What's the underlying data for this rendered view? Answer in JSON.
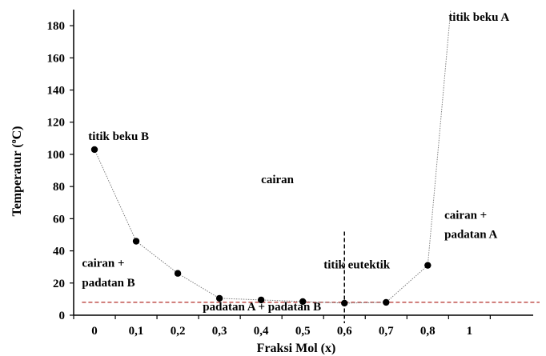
{
  "chart_data": {
    "type": "scatter",
    "xlabel": "Fraksi Mol (x)",
    "ylabel_main": "Temperatur (",
    "ylabel_sup": "o",
    "ylabel_tail": "C)",
    "xlim": [
      -0.05,
      1.08
    ],
    "ylim": [
      0,
      190
    ],
    "x_ticks": [
      0,
      0.1,
      0.2,
      0.3,
      0.4,
      0.5,
      0.6,
      0.7,
      0.8,
      1
    ],
    "x_tick_labels": [
      "0",
      "0,1",
      "0,2",
      "0,3",
      "0,4",
      "0,5",
      "0,6",
      "0,7",
      "0,8",
      "1"
    ],
    "y_ticks": [
      0,
      20,
      40,
      60,
      80,
      100,
      120,
      140,
      160,
      180
    ],
    "y_tick_labels": [
      "0",
      "20",
      "40",
      "60",
      "80",
      "100",
      "120",
      "140",
      "160",
      "180"
    ],
    "grid": false,
    "series": [
      {
        "x": [
          0,
          0.1,
          0.2,
          0.3,
          0.4,
          0.5,
          0.6,
          0.7,
          0.8
        ],
        "y": [
          103,
          46,
          26,
          10.5,
          9.5,
          8.5,
          7.5,
          8,
          31
        ],
        "color": "#000000"
      }
    ],
    "line_extension": {
      "x": [
        0.8,
        0.855
      ],
      "y": [
        31,
        190
      ]
    },
    "eutectic_line": {
      "y": 8,
      "color": "#c0504d"
    },
    "eutectic_vline": {
      "x": 0.6,
      "y0": 0,
      "y1": 52
    },
    "annotations": [
      {
        "text": "titik beku A",
        "x": 0.85,
        "y": 183
      },
      {
        "text": "titik beku B",
        "x": -0.015,
        "y": 109
      },
      {
        "text": "cairan",
        "x": 0.4,
        "y": 82
      },
      {
        "text": "cairan +",
        "x": 0.84,
        "y": 60
      },
      {
        "text": "padatan A",
        "x": 0.84,
        "y": 48
      },
      {
        "text": "cairan +",
        "x": -0.03,
        "y": 30
      },
      {
        "text": "padatan B",
        "x": -0.03,
        "y": 18
      },
      {
        "text": "titik eutektik",
        "x": 0.55,
        "y": 29
      },
      {
        "text": "padatan A + padatan B",
        "x": 0.26,
        "y": 3
      }
    ]
  }
}
